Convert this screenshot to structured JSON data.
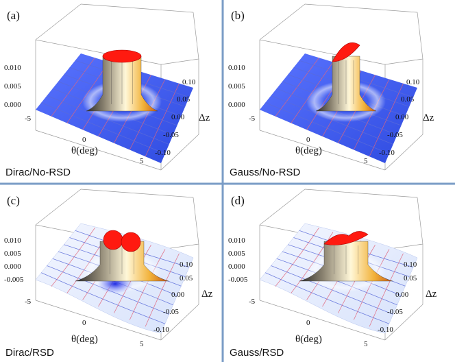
{
  "figure": {
    "panels": [
      {
        "letter": "(a)",
        "caption": "Dirac/No-RSD",
        "z_ticks": [
          "0.010",
          "0.005",
          "0.000"
        ],
        "theta_ticks": [
          "-5",
          "0",
          "5"
        ],
        "dz_ticks": [
          "0.10",
          "0.05",
          "0.00",
          "-0.05",
          "-0.10"
        ],
        "theta_label": "θ(deg)",
        "dz_label": "Δz",
        "surface": "no-rsd",
        "peak": "round"
      },
      {
        "letter": "(b)",
        "caption": "Gauss/No-RSD",
        "z_ticks": [
          "0.010",
          "0.005",
          "0.000"
        ],
        "theta_ticks": [
          "-5",
          "0",
          "5"
        ],
        "dz_ticks": [
          "0.10",
          "0.05",
          "0.00",
          "-0.05",
          "-0.10"
        ],
        "theta_label": "θ(deg)",
        "dz_label": "Δz",
        "surface": "no-rsd",
        "peak": "lens"
      },
      {
        "letter": "(c)",
        "caption": "Dirac/RSD",
        "z_ticks": [
          "0.010",
          "0.005",
          "0.000",
          "-0.005"
        ],
        "theta_ticks": [
          "-5",
          "0",
          "5"
        ],
        "dz_ticks": [
          "0.10",
          "0.05",
          "0.00",
          "-0.05",
          "-0.10"
        ],
        "theta_label": "θ(deg)",
        "dz_label": "Δz",
        "surface": "rsd",
        "peak": "double"
      },
      {
        "letter": "(d)",
        "caption": "Gauss/RSD",
        "z_ticks": [
          "0.010",
          "0.005",
          "0.000",
          "-0.005"
        ],
        "theta_ticks": [
          "-5",
          "0",
          "5"
        ],
        "dz_ticks": [
          "0.10",
          "0.05",
          "0.00",
          "-0.05",
          "-0.10"
        ],
        "theta_label": "θ(deg)",
        "dz_label": "Δz",
        "surface": "rsd",
        "peak": "lens-wide"
      }
    ],
    "colors": {
      "divider": "#7a9cc6",
      "plane_flat": "#3d5cf0",
      "plane_rsd": "#e8eefc",
      "peak_top": "#ff1a10",
      "mesh_red": "#e0657a",
      "mesh_blue": "#5a6bd8"
    }
  }
}
